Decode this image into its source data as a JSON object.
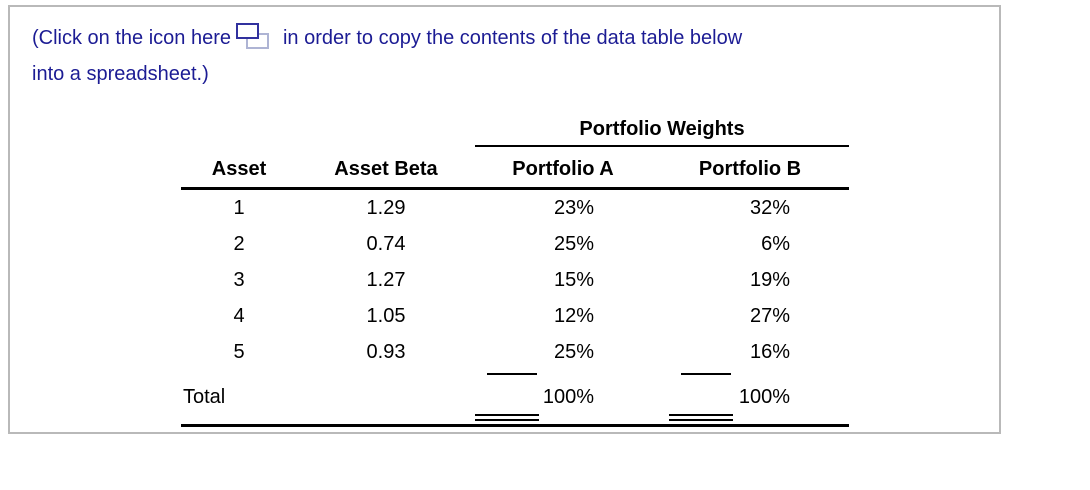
{
  "colors": {
    "instruction_text": "#1c1c94",
    "panel_border": "#b9b9b9",
    "icon_dark": "#31319e",
    "icon_light": "#aeb4d4",
    "table_text": "#000000"
  },
  "instruction": {
    "text_before_icon": "(Click on the icon here",
    "icon": "copy-table-icon",
    "text_after_icon": "in order to copy the contents of the data table below",
    "text_line2": "into a spreadsheet.)"
  },
  "table": {
    "group_header": "Portfolio Weights",
    "columns": [
      "Asset",
      "Asset Beta",
      "Portfolio A",
      "Portfolio B"
    ],
    "rows": [
      {
        "asset": "1",
        "beta": "1.29",
        "portfolio_a": "23%",
        "portfolio_b": "32%"
      },
      {
        "asset": "2",
        "beta": "0.74",
        "portfolio_a": "25%",
        "portfolio_b": "6%"
      },
      {
        "asset": "3",
        "beta": "1.27",
        "portfolio_a": "15%",
        "portfolio_b": "19%"
      },
      {
        "asset": "4",
        "beta": "1.05",
        "portfolio_a": "12%",
        "portfolio_b": "27%"
      },
      {
        "asset": "5",
        "beta": "0.93",
        "portfolio_a": "25%",
        "portfolio_b": "16%"
      }
    ],
    "total_label": "Total",
    "total_portfolio_a": "100%",
    "total_portfolio_b": "100%"
  }
}
